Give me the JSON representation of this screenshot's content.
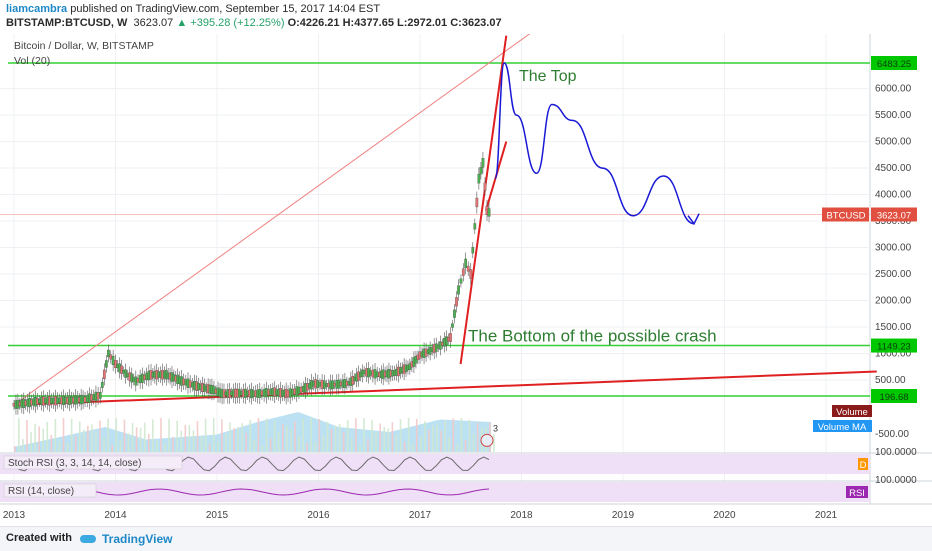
{
  "header": {
    "user": "liamcambra",
    "published": "published on TradingView.com, September 15, 2017 14:04 EST",
    "symbol": "BITSTAMP:BTCUSD, W",
    "price": "3623.07",
    "change": "+395.28 (+12.25%)",
    "ohlc": "O:4226.21 H:4377.65 L:2972.01 C:3623.07"
  },
  "chart_data": {
    "type": "candlestick",
    "title": "Bitcoin / Dollar, W, BITSTAMP",
    "subtitle": "Vol (20)",
    "x_ticks": [
      "2013",
      "2014",
      "2015",
      "2016",
      "2017",
      "2018",
      "2019",
      "2020",
      "2021"
    ],
    "y_ticks": [
      500,
      1000,
      1500,
      2000,
      2500,
      3000,
      3500,
      4000,
      4500,
      5000,
      5500,
      6000
    ],
    "y_tick_labels": [
      "500.00",
      "1000.00",
      "1500.00",
      "2000.00",
      "2500.00",
      "3000.00",
      "3500.00",
      "4000.00",
      "4500.00",
      "5000.00",
      "5500.00",
      "6000.00"
    ],
    "price_tags": [
      {
        "label": "6483.25",
        "value": 6483.25,
        "color": "#00c800"
      },
      {
        "label": "1149.23",
        "value": 1149.23,
        "color": "#00c800"
      },
      {
        "label": "196.68",
        "value": 196.68,
        "color": "#00c800"
      },
      {
        "label": "3623.07",
        "value": 3623.07,
        "color": "#e04f3f",
        "name": "BTCUSD"
      }
    ],
    "horizontal_levels": [
      6483.25,
      1149.23,
      196.68
    ],
    "price_path": [
      [
        2013.0,
        30
      ],
      [
        2013.25,
        100
      ],
      [
        2013.45,
        110
      ],
      [
        2013.7,
        130
      ],
      [
        2013.85,
        210
      ],
      [
        2013.93,
        1000
      ],
      [
        2014.0,
        800
      ],
      [
        2014.1,
        620
      ],
      [
        2014.2,
        480
      ],
      [
        2014.35,
        600
      ],
      [
        2014.5,
        600
      ],
      [
        2014.65,
        480
      ],
      [
        2014.8,
        380
      ],
      [
        2014.95,
        320
      ],
      [
        2015.05,
        240
      ],
      [
        2015.2,
        250
      ],
      [
        2015.4,
        240
      ],
      [
        2015.55,
        275
      ],
      [
        2015.7,
        240
      ],
      [
        2015.85,
        330
      ],
      [
        2015.95,
        430
      ],
      [
        2016.1,
        400
      ],
      [
        2016.3,
        440
      ],
      [
        2016.45,
        650
      ],
      [
        2016.6,
        600
      ],
      [
        2016.75,
        630
      ],
      [
        2016.9,
        750
      ],
      [
        2017.0,
        970
      ],
      [
        2017.1,
        1050
      ],
      [
        2017.2,
        1150
      ],
      [
        2017.3,
        1300
      ],
      [
        2017.38,
        2200
      ],
      [
        2017.45,
        2700
      ],
      [
        2017.5,
        2500
      ],
      [
        2017.58,
        4300
      ],
      [
        2017.62,
        4600
      ],
      [
        2017.66,
        3700
      ],
      [
        2017.7,
        3623
      ]
    ],
    "volume_path": [
      [
        2013.0,
        0.1
      ],
      [
        2013.9,
        0.5
      ],
      [
        2014.3,
        0.25
      ],
      [
        2015.0,
        0.35
      ],
      [
        2015.4,
        0.6
      ],
      [
        2015.8,
        0.8
      ],
      [
        2016.2,
        0.5
      ],
      [
        2016.7,
        0.4
      ],
      [
        2017.2,
        0.65
      ],
      [
        2017.7,
        0.6
      ]
    ],
    "annotations": {
      "top": "The Top",
      "bottom": "The Bottom of the possible crash",
      "badge": "3"
    },
    "projection": [
      [
        2017.74,
        4300
      ],
      [
        2017.83,
        6483
      ],
      [
        2017.95,
        5500
      ],
      [
        2018.15,
        4400
      ],
      [
        2018.3,
        5700
      ],
      [
        2018.5,
        5400
      ],
      [
        2018.8,
        4500
      ],
      [
        2019.1,
        3600
      ],
      [
        2019.4,
        4350
      ],
      [
        2019.7,
        3450
      ]
    ],
    "trendlines": [
      {
        "from": [
          2013.0,
          30
        ],
        "to": [
          2018.2,
          7200
        ],
        "color": "#f08080",
        "width": 1
      },
      {
        "from": [
          2013.0,
          30
        ],
        "to": [
          2021.5,
          660
        ],
        "color": "#e02020",
        "width": 2
      },
      {
        "from": [
          2017.4,
          800
        ],
        "to": [
          2017.85,
          7000
        ],
        "color": "#e02020",
        "width": 2
      },
      {
        "from": [
          2017.65,
          3700
        ],
        "to": [
          2017.85,
          5000
        ],
        "color": "#e02020",
        "width": 2
      }
    ],
    "legend": {
      "volume": "Volume",
      "volume_ma": "Volume MA"
    },
    "volume_axis_label": "-500.00",
    "indicators": [
      {
        "label": "Stoch RSI (3, 3, 14, 14, close)",
        "axis_label": "100.0000",
        "badge": "D"
      },
      {
        "label": "RSI (14, close)",
        "axis_label": "100.0000",
        "badge": "RSI"
      }
    ]
  },
  "footer": {
    "created_with": "Created with",
    "brand": "TradingView"
  }
}
